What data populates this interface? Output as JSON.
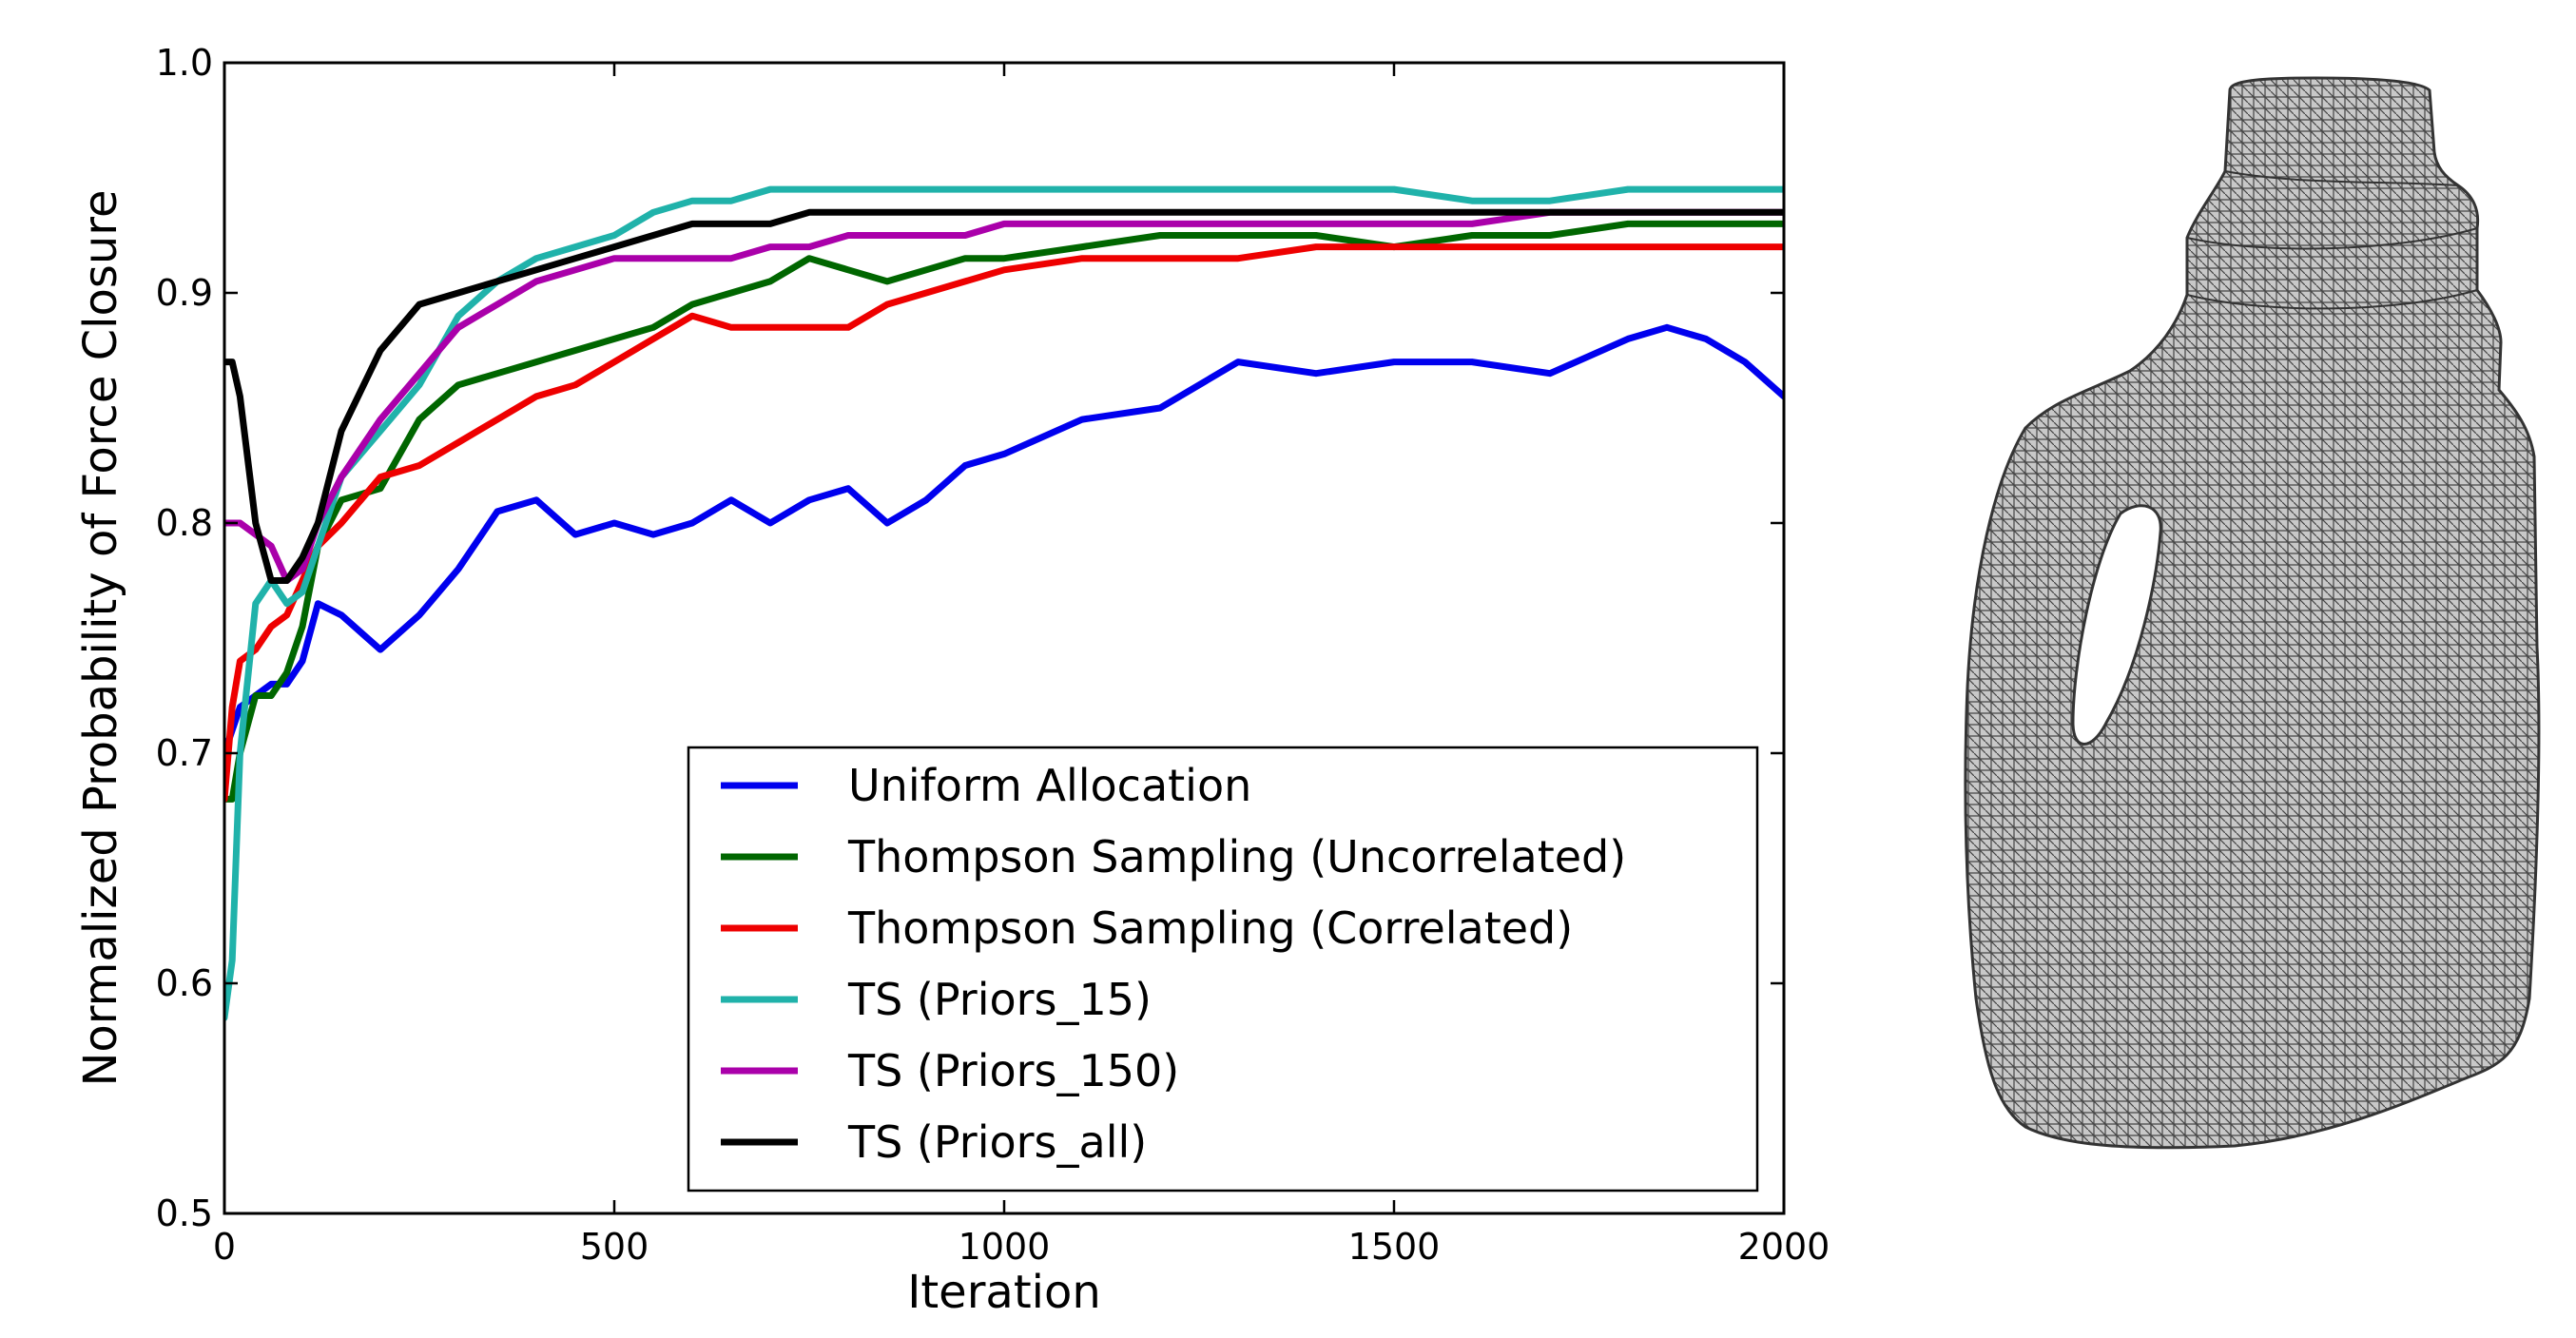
{
  "chart_data": {
    "type": "line",
    "title": "",
    "xlabel": "Iteration",
    "ylabel": "Normalized Probability of Force Closure",
    "xlim": [
      0,
      2000
    ],
    "ylim": [
      0.5,
      1.0
    ],
    "xticks": [
      "0",
      "500",
      "1000",
      "1500",
      "2000"
    ],
    "yticks": [
      "0.5",
      "0.6",
      "0.7",
      "0.8",
      "0.9",
      "1.0"
    ],
    "grid": false,
    "legend_position": "lower-right",
    "x": [
      0,
      10,
      20,
      40,
      60,
      80,
      100,
      120,
      150,
      200,
      250,
      300,
      350,
      400,
      450,
      500,
      550,
      600,
      650,
      700,
      750,
      800,
      850,
      900,
      950,
      1000,
      1100,
      1200,
      1300,
      1400,
      1500,
      1600,
      1700,
      1800,
      1850,
      1900,
      1950,
      2000
    ],
    "series": [
      {
        "name": "Uniform Allocation",
        "color": "#0000ee",
        "values": [
          0.7,
          0.71,
          0.72,
          0.725,
          0.73,
          0.73,
          0.74,
          0.765,
          0.76,
          0.745,
          0.76,
          0.78,
          0.805,
          0.81,
          0.795,
          0.8,
          0.795,
          0.8,
          0.81,
          0.8,
          0.81,
          0.815,
          0.8,
          0.81,
          0.825,
          0.83,
          0.845,
          0.85,
          0.87,
          0.865,
          0.87,
          0.87,
          0.865,
          0.88,
          0.885,
          0.88,
          0.87,
          0.855
        ]
      },
      {
        "name": "Thompson Sampling (Uncorrelated)",
        "color": "#006600",
        "values": [
          0.68,
          0.68,
          0.7,
          0.725,
          0.725,
          0.735,
          0.755,
          0.79,
          0.81,
          0.815,
          0.845,
          0.86,
          0.865,
          0.87,
          0.875,
          0.88,
          0.885,
          0.895,
          0.9,
          0.905,
          0.915,
          0.91,
          0.905,
          0.91,
          0.915,
          0.915,
          0.92,
          0.925,
          0.925,
          0.925,
          0.92,
          0.925,
          0.925,
          0.93,
          0.93,
          0.93,
          0.93,
          0.93
        ]
      },
      {
        "name": "Thompson Sampling (Correlated)",
        "color": "#ee0000",
        "values": [
          0.68,
          0.72,
          0.74,
          0.745,
          0.755,
          0.76,
          0.775,
          0.79,
          0.8,
          0.82,
          0.825,
          0.835,
          0.845,
          0.855,
          0.86,
          0.87,
          0.88,
          0.89,
          0.885,
          0.885,
          0.885,
          0.885,
          0.895,
          0.9,
          0.905,
          0.91,
          0.915,
          0.915,
          0.915,
          0.92,
          0.92,
          0.92,
          0.92,
          0.92,
          0.92,
          0.92,
          0.92,
          0.92
        ]
      },
      {
        "name": "TS (Priors_15)",
        "color": "#20b2aa",
        "values": [
          0.585,
          0.61,
          0.7,
          0.765,
          0.775,
          0.765,
          0.77,
          0.79,
          0.82,
          0.84,
          0.86,
          0.89,
          0.905,
          0.915,
          0.92,
          0.925,
          0.935,
          0.94,
          0.94,
          0.945,
          0.945,
          0.945,
          0.945,
          0.945,
          0.945,
          0.945,
          0.945,
          0.945,
          0.945,
          0.945,
          0.945,
          0.94,
          0.94,
          0.945,
          0.945,
          0.945,
          0.945,
          0.945
        ]
      },
      {
        "name": "TS (Priors_150)",
        "color": "#aa00aa",
        "values": [
          0.8,
          0.8,
          0.8,
          0.795,
          0.79,
          0.775,
          0.78,
          0.8,
          0.82,
          0.845,
          0.865,
          0.885,
          0.895,
          0.905,
          0.91,
          0.915,
          0.915,
          0.915,
          0.915,
          0.92,
          0.92,
          0.925,
          0.925,
          0.925,
          0.925,
          0.93,
          0.93,
          0.93,
          0.93,
          0.93,
          0.93,
          0.93,
          0.935,
          0.935,
          0.935,
          0.935,
          0.935,
          0.935
        ]
      },
      {
        "name": "TS (Priors_all)",
        "color": "#000000",
        "values": [
          0.87,
          0.87,
          0.855,
          0.8,
          0.775,
          0.775,
          0.785,
          0.8,
          0.84,
          0.875,
          0.895,
          0.9,
          0.905,
          0.91,
          0.915,
          0.92,
          0.925,
          0.93,
          0.93,
          0.93,
          0.935,
          0.935,
          0.935,
          0.935,
          0.935,
          0.935,
          0.935,
          0.935,
          0.935,
          0.935,
          0.935,
          0.935,
          0.935,
          0.935,
          0.935,
          0.935,
          0.935,
          0.935
        ]
      }
    ]
  },
  "figure": {
    "image_subject": "bottle-mesh-icon",
    "mesh_fill": "#c8c8c8",
    "mesh_line": "#444444"
  }
}
